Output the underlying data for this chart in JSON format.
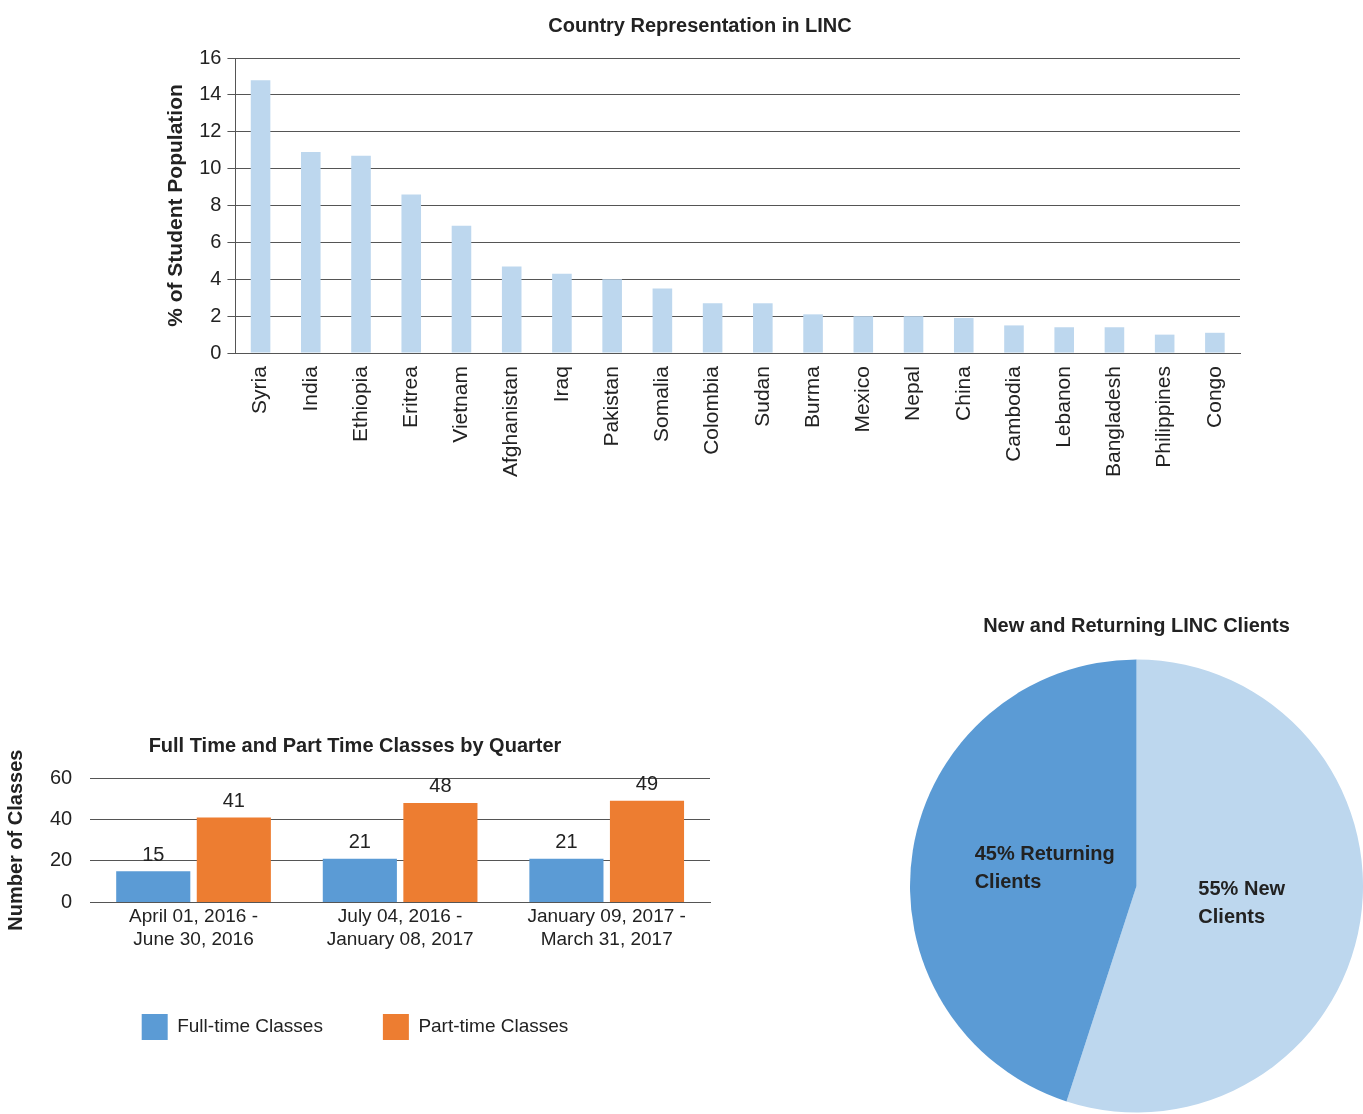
{
  "chart_data": [
    {
      "type": "bar",
      "title": "Country Representation in LINC",
      "ylabel": "% of Student Population",
      "categories": [
        "Syria",
        "India",
        "Ethiopia",
        "Eritrea",
        "Vietnam",
        "Afghanistan",
        "Iraq",
        "Pakistan",
        "Somalia",
        "Colombia",
        "Sudan",
        "Burma",
        "Mexico",
        "Nepal",
        "China",
        "Cambodia",
        "Lebanon",
        "Bangladesh",
        "Philippines",
        "Congo"
      ],
      "values": [
        14.8,
        10.9,
        10.7,
        8.6,
        6.9,
        4.7,
        4.3,
        4.0,
        3.5,
        2.7,
        2.7,
        2.1,
        2.0,
        2.0,
        1.9,
        1.5,
        1.4,
        1.4,
        1.0,
        1.1
      ],
      "color": "#bdd7ee",
      "ylim": [
        0,
        16
      ],
      "yticks": [
        0,
        2,
        4,
        6,
        8,
        10,
        12,
        14,
        16
      ],
      "grid": "y",
      "legend": false
    },
    {
      "type": "bar",
      "title": "Full Time and Part Time Classes by Quarter",
      "ylabel": "Number of Classes",
      "categories": [
        "April 01, 2016 -\nJune 30, 2016",
        "July 04, 2016 -\nJanuary 08, 2017",
        "January 09, 2017 -\nMarch 31, 2017"
      ],
      "series": [
        {
          "name": "Full-time Classes",
          "color": "#5b9bd5",
          "values": [
            15,
            21,
            21
          ]
        },
        {
          "name": "Part-time Classes",
          "color": "#ed7d31",
          "values": [
            41,
            48,
            49
          ]
        }
      ],
      "ylim": [
        0,
        60
      ],
      "yticks": [
        0,
        20,
        40,
        60
      ],
      "grid": "y",
      "legend": "bottom",
      "data_labels": true
    },
    {
      "type": "pie",
      "title": "New and Returning LINC Clients",
      "categories": [
        null,
        null
      ],
      "values": [
        55,
        45
      ],
      "colors": [
        "#bdd7ee",
        "#5b9bd5"
      ],
      "value_labels": [
        "55% New\nClients",
        "45% Returning\nClients"
      ],
      "legend": false
    }
  ]
}
